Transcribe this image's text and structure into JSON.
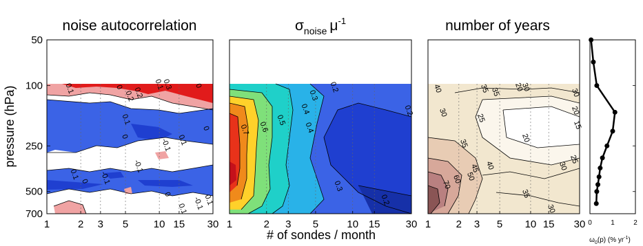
{
  "figure": {
    "y_axis_label": "pressure (hPa)",
    "x_axis_label": "# of sondes / month"
  },
  "colors": {
    "blue_deep": "#1f3fd0",
    "blue_mid": "#3b63e6",
    "blue_light": "#6f8ff2",
    "pink": "#f0a3a3",
    "red": "#e11b1b",
    "white": "#ffffff",
    "line": "#000000"
  },
  "chart_data": [
    {
      "type": "heatmap",
      "title": "noise autocorrelation",
      "x_ticks": [
        "1",
        "2",
        "3",
        "5",
        "10",
        "15",
        "30"
      ],
      "y_ticks": [
        "50",
        "100",
        "250",
        "500",
        "700"
      ],
      "contour_labels": [
        "0.1",
        "0",
        "0.2",
        "0.2",
        "0.1",
        "0.3",
        "0",
        "0.1",
        "0",
        "-0.1",
        "0.1",
        "0",
        "0.1",
        "-0.1",
        "-0.1",
        "0",
        "0",
        "-0.1",
        "0.1",
        "0.1"
      ],
      "xlim": [
        1,
        30
      ],
      "ylim": [
        50,
        700
      ],
      "note": "contour fill: red > 0.2, pink 0.1-0.2, white -0.1-0.1, blue < -0.1; no data above 100 hPa"
    },
    {
      "type": "heatmap",
      "title_main": "σ",
      "title_sub": "noise",
      "title_tail": "μ",
      "title_sup": "-1",
      "x_ticks": [
        "1",
        "2",
        "3",
        "5",
        "10",
        "15",
        "30"
      ],
      "contour_labels": [
        "0.2",
        "0.3",
        "0.4",
        "0.4",
        "0.5",
        "0.6",
        "0.7",
        "0.3",
        "0.2",
        "0.2"
      ],
      "xlim": [
        1,
        30
      ],
      "ylim": [
        50,
        700
      ],
      "levels": [
        0.2,
        0.3,
        0.4,
        0.5,
        0.6,
        0.7,
        0.8
      ]
    },
    {
      "type": "heatmap",
      "title": "number of years",
      "x_ticks": [
        "1",
        "2",
        "3",
        "5",
        "10",
        "15",
        "30"
      ],
      "contour_labels": [
        "40",
        "35",
        "35",
        "30",
        "20",
        "30",
        "20",
        "30",
        "25",
        "15",
        "20",
        "35",
        "25",
        "45",
        "40",
        "50",
        "30",
        "70",
        "60",
        "35",
        "30"
      ],
      "xlim": [
        1,
        30
      ],
      "ylim": [
        50,
        700
      ],
      "levels": [
        15,
        20,
        25,
        30,
        35,
        40,
        45,
        50,
        60,
        70
      ]
    },
    {
      "type": "line",
      "xlabel_main": "ω",
      "xlabel_sub": "0",
      "xlabel_mid": "(p) (% yr",
      "xlabel_sup": "-1",
      "xlabel_end": ")",
      "x_ticks": [
        "0",
        "1",
        "2"
      ],
      "xlim": [
        0,
        2
      ],
      "ylim": [
        50,
        700
      ],
      "x": [
        0.05,
        0.15,
        0.3,
        1.1,
        1.0,
        0.75,
        0.55,
        0.45,
        0.4,
        0.35,
        0.3,
        0.28
      ],
      "y": [
        50,
        70,
        100,
        150,
        200,
        250,
        300,
        350,
        400,
        450,
        500,
        600
      ]
    }
  ]
}
